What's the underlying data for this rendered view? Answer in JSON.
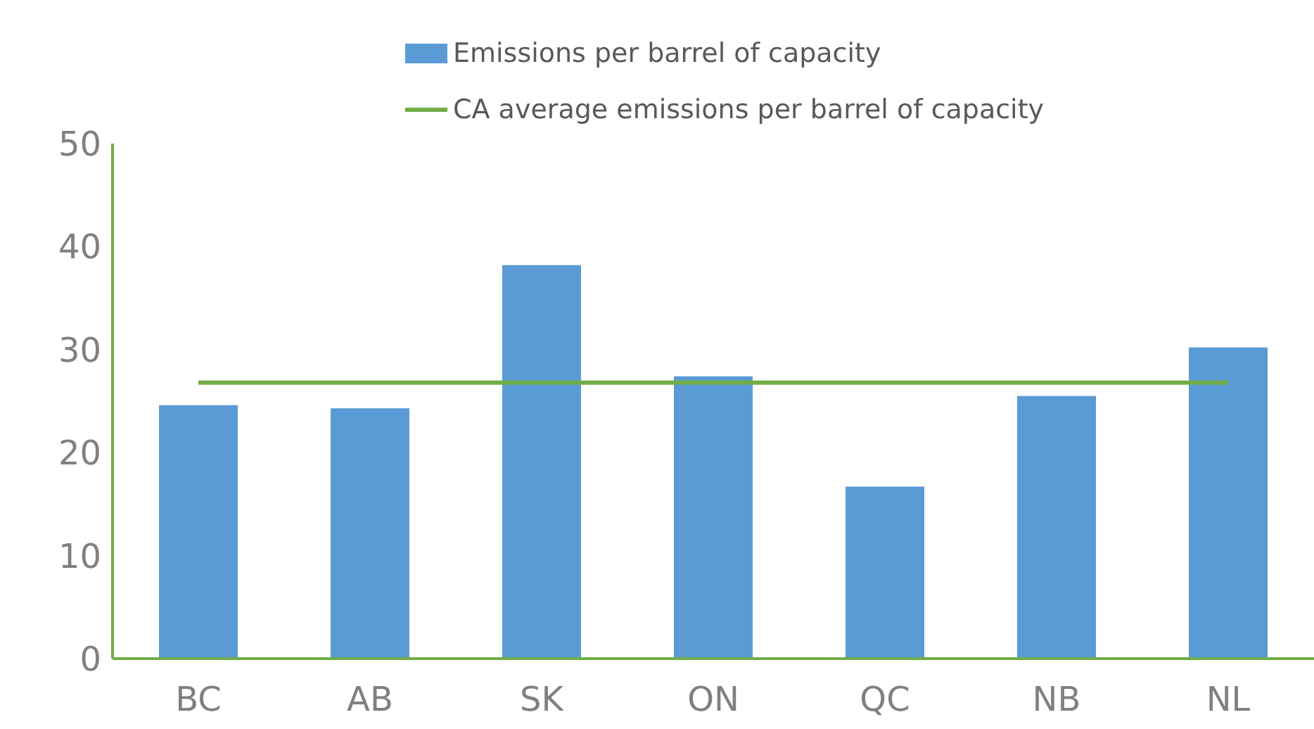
{
  "chart_data": {
    "type": "bar",
    "categories": [
      "BC",
      "AB",
      "SK",
      "ON",
      "QC",
      "NB",
      "NL"
    ],
    "series": [
      {
        "name": "Emissions per barrel of capacity",
        "color": "#5b9bd5",
        "values": [
          24.6,
          24.3,
          38.2,
          27.4,
          16.7,
          25.5,
          30.2
        ]
      },
      {
        "name": "CA average emissions per barrel of capacity",
        "type": "line",
        "color": "#70ad47",
        "values": [
          26.8,
          26.8,
          26.8,
          26.8,
          26.8,
          26.8,
          26.8
        ]
      }
    ],
    "ylim": [
      0,
      50
    ],
    "yticks": [
      0,
      10,
      20,
      30,
      40,
      50
    ],
    "grid": false,
    "legend": "top"
  }
}
